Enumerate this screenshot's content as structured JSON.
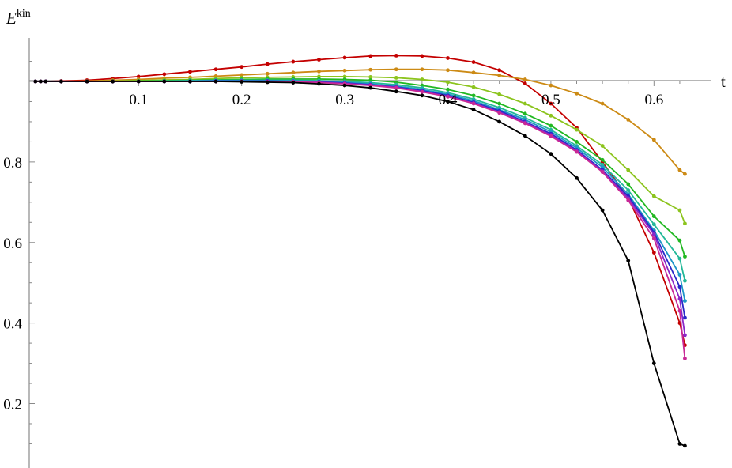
{
  "chart_data": {
    "type": "line",
    "title": "",
    "xlabel": "t",
    "ylabel": "E",
    "ylabel_superscript": "kin",
    "xlim": [
      -0.006,
      0.645
    ],
    "ylim": [
      0.04,
      1.108
    ],
    "x_ticks": [
      0.1,
      0.2,
      0.3,
      0.4,
      0.5,
      0.6
    ],
    "y_ticks": [
      0.2,
      0.4,
      0.6,
      0.8
    ],
    "x_tick_labels": [
      "0.1",
      "0.2",
      "0.3",
      "0.4",
      "0.5",
      "0.6"
    ],
    "y_tick_labels": [
      "0.2",
      "0.4",
      "0.6",
      "0.8"
    ],
    "grid": false,
    "x": [
      0,
      0.005,
      0.01,
      0.025,
      0.05,
      0.075,
      0.1,
      0.125,
      0.15,
      0.175,
      0.2,
      0.225,
      0.25,
      0.275,
      0.3,
      0.325,
      0.35,
      0.375,
      0.4,
      0.425,
      0.45,
      0.475,
      0.5,
      0.525,
      0.55,
      0.575,
      0.6,
      0.625,
      0.63
    ],
    "series": [
      {
        "color": "#c40000",
        "values": [
          1.0,
          1.0,
          1.0,
          1.001,
          1.003,
          1.007,
          1.012,
          1.018,
          1.024,
          1.03,
          1.036,
          1.043,
          1.049,
          1.054,
          1.059,
          1.063,
          1.064,
          1.063,
          1.058,
          1.048,
          1.028,
          0.995,
          0.945,
          0.885,
          0.8,
          0.71,
          0.575,
          0.4,
          0.345
        ]
      },
      {
        "color": "#cc8a14",
        "values": [
          1.0,
          1.0,
          1.0,
          1.0,
          1.001,
          1.003,
          1.005,
          1.008,
          1.01,
          1.013,
          1.016,
          1.019,
          1.022,
          1.025,
          1.027,
          1.029,
          1.03,
          1.03,
          1.028,
          1.022,
          1.015,
          1.005,
          0.99,
          0.97,
          0.945,
          0.905,
          0.855,
          0.78,
          0.77
        ]
      },
      {
        "color": "#8cc41e",
        "values": [
          1.0,
          1.0,
          1.0,
          1.0,
          1.0,
          1.001,
          1.002,
          1.004,
          1.005,
          1.007,
          1.009,
          1.01,
          1.011,
          1.012,
          1.012,
          1.011,
          1.009,
          1.005,
          0.998,
          0.986,
          0.968,
          0.945,
          0.915,
          0.88,
          0.84,
          0.78,
          0.715,
          0.68,
          0.647
        ]
      },
      {
        "color": "#22b822",
        "values": [
          1.0,
          1.0,
          1.0,
          1.0,
          1.0,
          1.0,
          1.001,
          1.002,
          1.003,
          1.004,
          1.005,
          1.006,
          1.006,
          1.006,
          1.005,
          1.003,
          0.998,
          0.99,
          0.98,
          0.965,
          0.945,
          0.92,
          0.89,
          0.85,
          0.805,
          0.745,
          0.665,
          0.605,
          0.565
        ]
      },
      {
        "color": "#22b898",
        "values": [
          1.0,
          1.0,
          1.0,
          1.0,
          1.0,
          1.0,
          1.0,
          1.001,
          1.002,
          1.003,
          1.003,
          1.003,
          1.003,
          1.002,
          1.0,
          0.997,
          0.992,
          0.984,
          0.972,
          0.956,
          0.935,
          0.91,
          0.88,
          0.84,
          0.793,
          0.73,
          0.645,
          0.56,
          0.505
        ]
      },
      {
        "color": "#1e96c8",
        "values": [
          1.0,
          1.0,
          1.0,
          1.0,
          1.0,
          1.0,
          1.0,
          1.0,
          1.001,
          1.002,
          1.002,
          1.002,
          1.002,
          1.0,
          0.998,
          0.994,
          0.988,
          0.98,
          0.968,
          0.952,
          0.93,
          0.905,
          0.875,
          0.835,
          0.787,
          0.72,
          0.63,
          0.52,
          0.455
        ]
      },
      {
        "color": "#2828c8",
        "values": [
          1.0,
          1.0,
          1.0,
          1.0,
          1.0,
          1.0,
          1.0,
          1.0,
          1.0,
          1.001,
          1.001,
          1.001,
          1.0,
          0.999,
          0.996,
          0.992,
          0.986,
          0.977,
          0.965,
          0.948,
          0.927,
          0.9,
          0.87,
          0.83,
          0.78,
          0.715,
          0.625,
          0.49,
          0.413
        ]
      },
      {
        "color": "#8a28c8",
        "values": [
          1.0,
          1.0,
          1.0,
          1.0,
          1.0,
          1.0,
          1.0,
          1.0,
          1.0,
          1.0,
          1.0,
          1.0,
          0.999,
          0.998,
          0.995,
          0.991,
          0.985,
          0.975,
          0.963,
          0.946,
          0.924,
          0.898,
          0.867,
          0.827,
          0.777,
          0.71,
          0.62,
          0.46,
          0.37
        ]
      },
      {
        "color": "#c82896",
        "values": [
          1.0,
          1.0,
          1.0,
          1.0,
          1.0,
          1.0,
          1.0,
          1.0,
          1.0,
          1.0,
          1.0,
          0.999,
          0.999,
          0.997,
          0.994,
          0.99,
          0.984,
          0.974,
          0.962,
          0.945,
          0.922,
          0.896,
          0.864,
          0.825,
          0.775,
          0.705,
          0.61,
          0.43,
          0.312
        ]
      },
      {
        "color": "#000000",
        "values": [
          1.0,
          1.0,
          1.0,
          1.0,
          1.0,
          1.0,
          1.0,
          1.0,
          1.0,
          1.0,
          0.999,
          0.998,
          0.997,
          0.994,
          0.99,
          0.984,
          0.975,
          0.965,
          0.95,
          0.93,
          0.9,
          0.865,
          0.82,
          0.76,
          0.68,
          0.555,
          0.3,
          0.1,
          0.095
        ]
      }
    ]
  }
}
